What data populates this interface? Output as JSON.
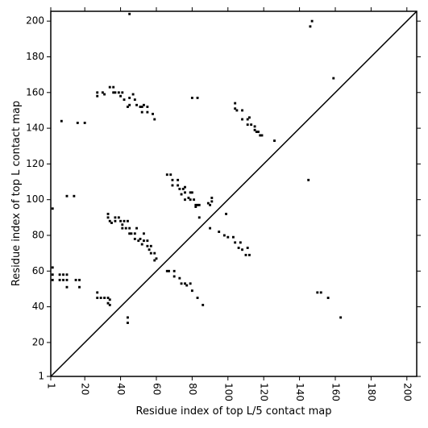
{
  "chart_data": {
    "type": "scatter",
    "xlabel": "Residue index of top L/5 contact map",
    "ylabel": "Residue index of top L contact map",
    "xlim": [
      1,
      205.5
    ],
    "ylim": [
      1,
      205.5
    ],
    "xticks": [
      1,
      20,
      40,
      60,
      80,
      100,
      120,
      140,
      160,
      180,
      200
    ],
    "yticks": [
      1,
      20,
      40,
      60,
      80,
      100,
      120,
      140,
      160,
      180,
      200
    ],
    "color": "#000000",
    "x": [
      2,
      2,
      2,
      2,
      6,
      8,
      10,
      6,
      8,
      10,
      10,
      10,
      14,
      7,
      16,
      20,
      15,
      17,
      17,
      27,
      27,
      29,
      31,
      33,
      33,
      34,
      34,
      45,
      44,
      44,
      147,
      146,
      159,
      27,
      27,
      30,
      31,
      34,
      36,
      37,
      39,
      40,
      41,
      42,
      44,
      45,
      45,
      47,
      48,
      49,
      51,
      52,
      52,
      53,
      55,
      55,
      58,
      59,
      36,
      80,
      83,
      104,
      104,
      105,
      108,
      108,
      111,
      112,
      111,
      113,
      115,
      115,
      116,
      117,
      118,
      119,
      126,
      145,
      66,
      68,
      69,
      69,
      72,
      72,
      73,
      74,
      75,
      76,
      76,
      78,
      76,
      79,
      79,
      80,
      81,
      82,
      83,
      82,
      84,
      89,
      90,
      91,
      91,
      84,
      90,
      95,
      98,
      99,
      100,
      103,
      104,
      106,
      107,
      108,
      110,
      111,
      112,
      33,
      33,
      34,
      35,
      37,
      37,
      39,
      40,
      41,
      41,
      42,
      43,
      44,
      45,
      45,
      46,
      48,
      48,
      49,
      50,
      51,
      52,
      53,
      53,
      55,
      55,
      56,
      57,
      57,
      59,
      59,
      60,
      66,
      67,
      70,
      70,
      73,
      74,
      76,
      77,
      79,
      80,
      83,
      86,
      150,
      152,
      156,
      163
    ],
    "values": [
      95,
      62,
      58,
      55,
      58,
      58,
      58,
      55,
      55,
      55,
      51,
      102,
      102,
      144,
      143,
      143,
      55,
      55,
      51,
      48,
      45,
      45,
      45,
      45,
      42,
      41,
      44,
      204,
      34,
      31,
      200,
      197,
      168,
      160,
      158,
      160,
      159,
      163,
      163,
      160,
      160,
      158,
      160,
      156,
      152,
      153,
      157,
      159,
      156,
      153,
      152,
      152,
      149,
      153,
      152,
      149,
      148,
      145,
      160,
      157,
      157,
      154,
      151,
      150,
      150,
      145,
      145,
      146,
      142,
      142,
      141,
      139,
      138,
      138,
      136,
      136,
      133,
      111,
      114,
      114,
      111,
      108,
      111,
      108,
      106,
      103,
      106,
      107,
      104,
      101,
      100,
      100,
      104,
      104,
      100,
      97,
      97,
      96,
      97,
      98,
      97,
      99,
      101,
      90,
      84,
      82,
      80,
      92,
      79,
      79,
      76,
      73,
      76,
      72,
      69,
      73,
      69,
      92,
      90,
      88,
      87,
      90,
      88,
      90,
      88,
      86,
      84,
      88,
      84,
      88,
      84,
      81,
      81,
      81,
      78,
      84,
      77,
      78,
      75,
      81,
      77,
      77,
      74,
      72,
      74,
      70,
      70,
      66,
      67,
      60,
      60,
      60,
      57,
      56,
      53,
      53,
      52,
      53,
      49,
      45,
      41,
      48,
      48,
      45,
      34
    ]
  }
}
